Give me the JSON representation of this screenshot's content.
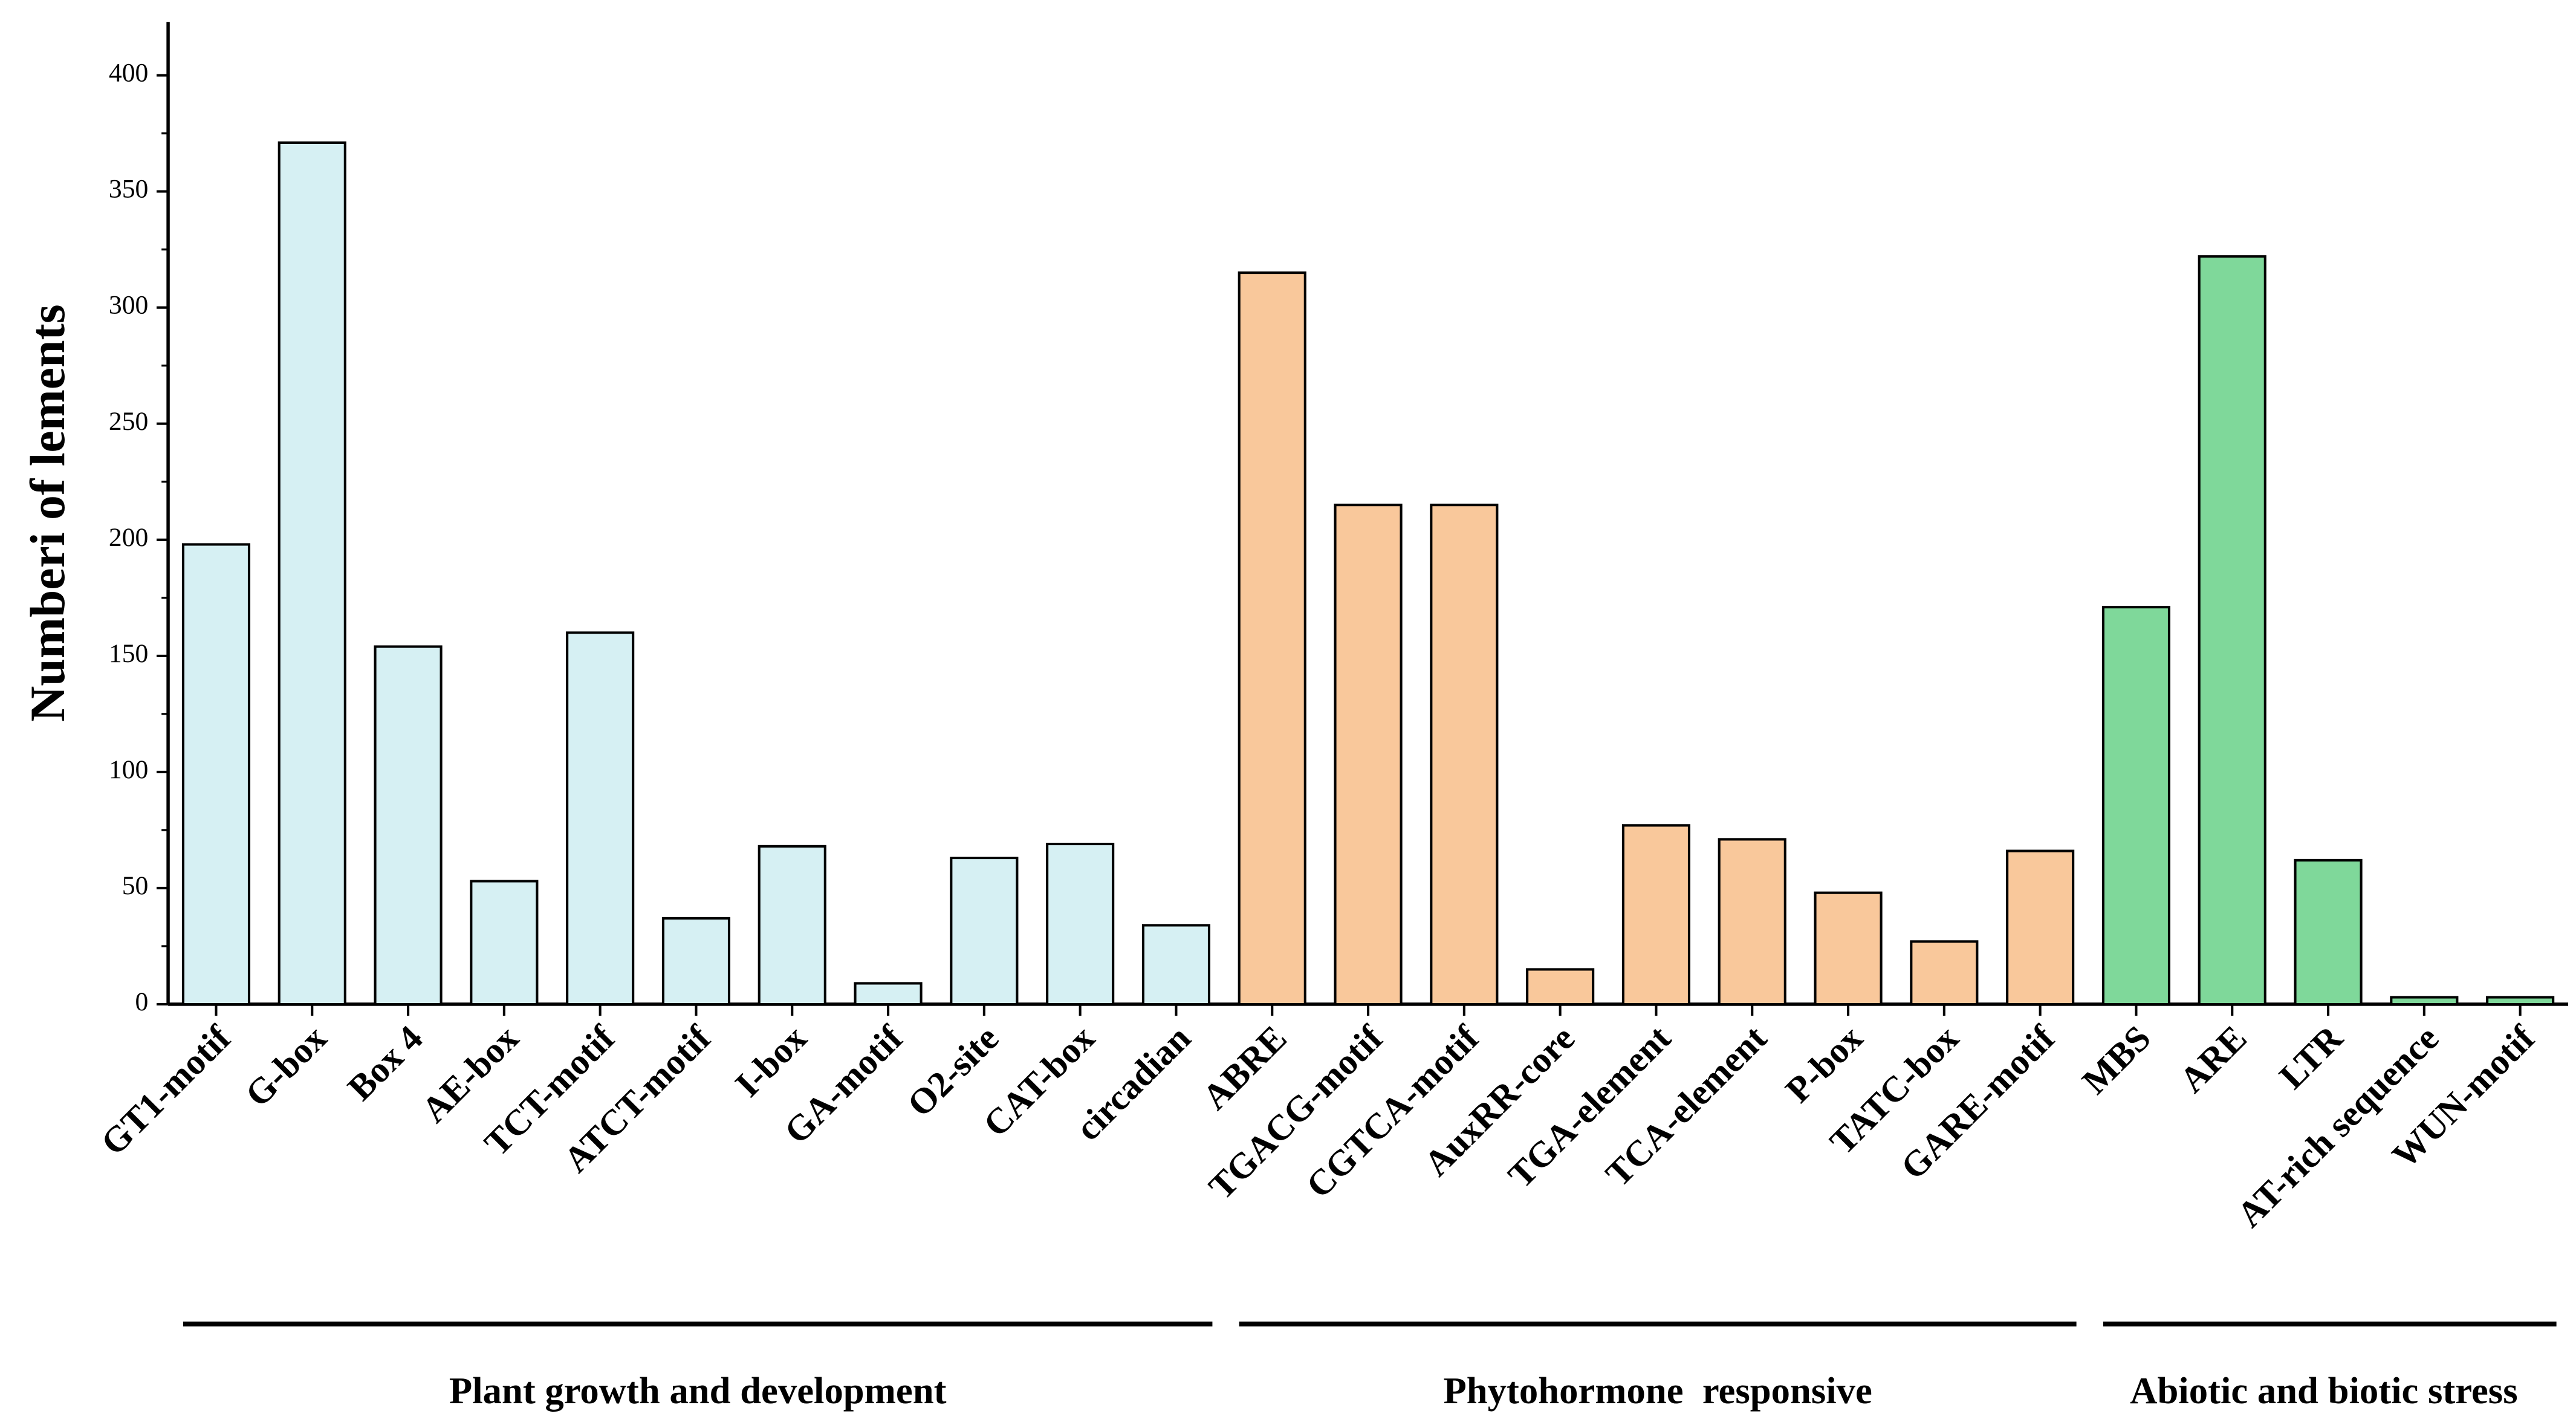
{
  "chart_data": {
    "type": "bar",
    "y_label": "Numberi of lements",
    "categories": [
      "GT1-motif",
      "G-box",
      "Box 4",
      "AE-box",
      "TCT-motif",
      "ATCT-motif",
      "I-box",
      "GA-motif",
      "O2-site",
      "CAT-box",
      "circadian",
      "ABRE",
      "TGACG-motif",
      "CGTCA-motif",
      "AuxRR-core",
      "TGA-element",
      "TCA-element",
      "P-box",
      "TATC-box",
      "GARE-motif",
      "MBS",
      "ARE",
      "LTR",
      "AT-rich sequence",
      "WUN-motif"
    ],
    "series": [
      {
        "name": "Plant growth and development",
        "color": "#d6f0f3",
        "values": [
          198,
          371,
          154,
          53,
          160,
          37,
          68,
          9,
          63,
          69,
          34,
          null,
          null,
          null,
          null,
          null,
          null,
          null,
          null,
          null,
          null,
          null,
          null,
          null,
          null
        ]
      },
      {
        "name": "Phytohormone  responsive",
        "color": "#f9c89b",
        "values": [
          null,
          null,
          null,
          null,
          null,
          null,
          null,
          null,
          null,
          null,
          null,
          315,
          215,
          215,
          15,
          77,
          71,
          48,
          27,
          66,
          null,
          null,
          null,
          null,
          null
        ]
      },
      {
        "name": "Abiotic and biotic stress",
        "color": "#7fd89a",
        "values": [
          null,
          null,
          null,
          null,
          null,
          null,
          null,
          null,
          null,
          null,
          null,
          null,
          null,
          null,
          null,
          null,
          null,
          null,
          null,
          null,
          171,
          322,
          62,
          3,
          3
        ]
      }
    ],
    "ylim": [
      0,
      423
    ],
    "yticks": [
      0,
      50,
      100,
      150,
      200,
      250,
      300,
      350,
      400
    ]
  }
}
